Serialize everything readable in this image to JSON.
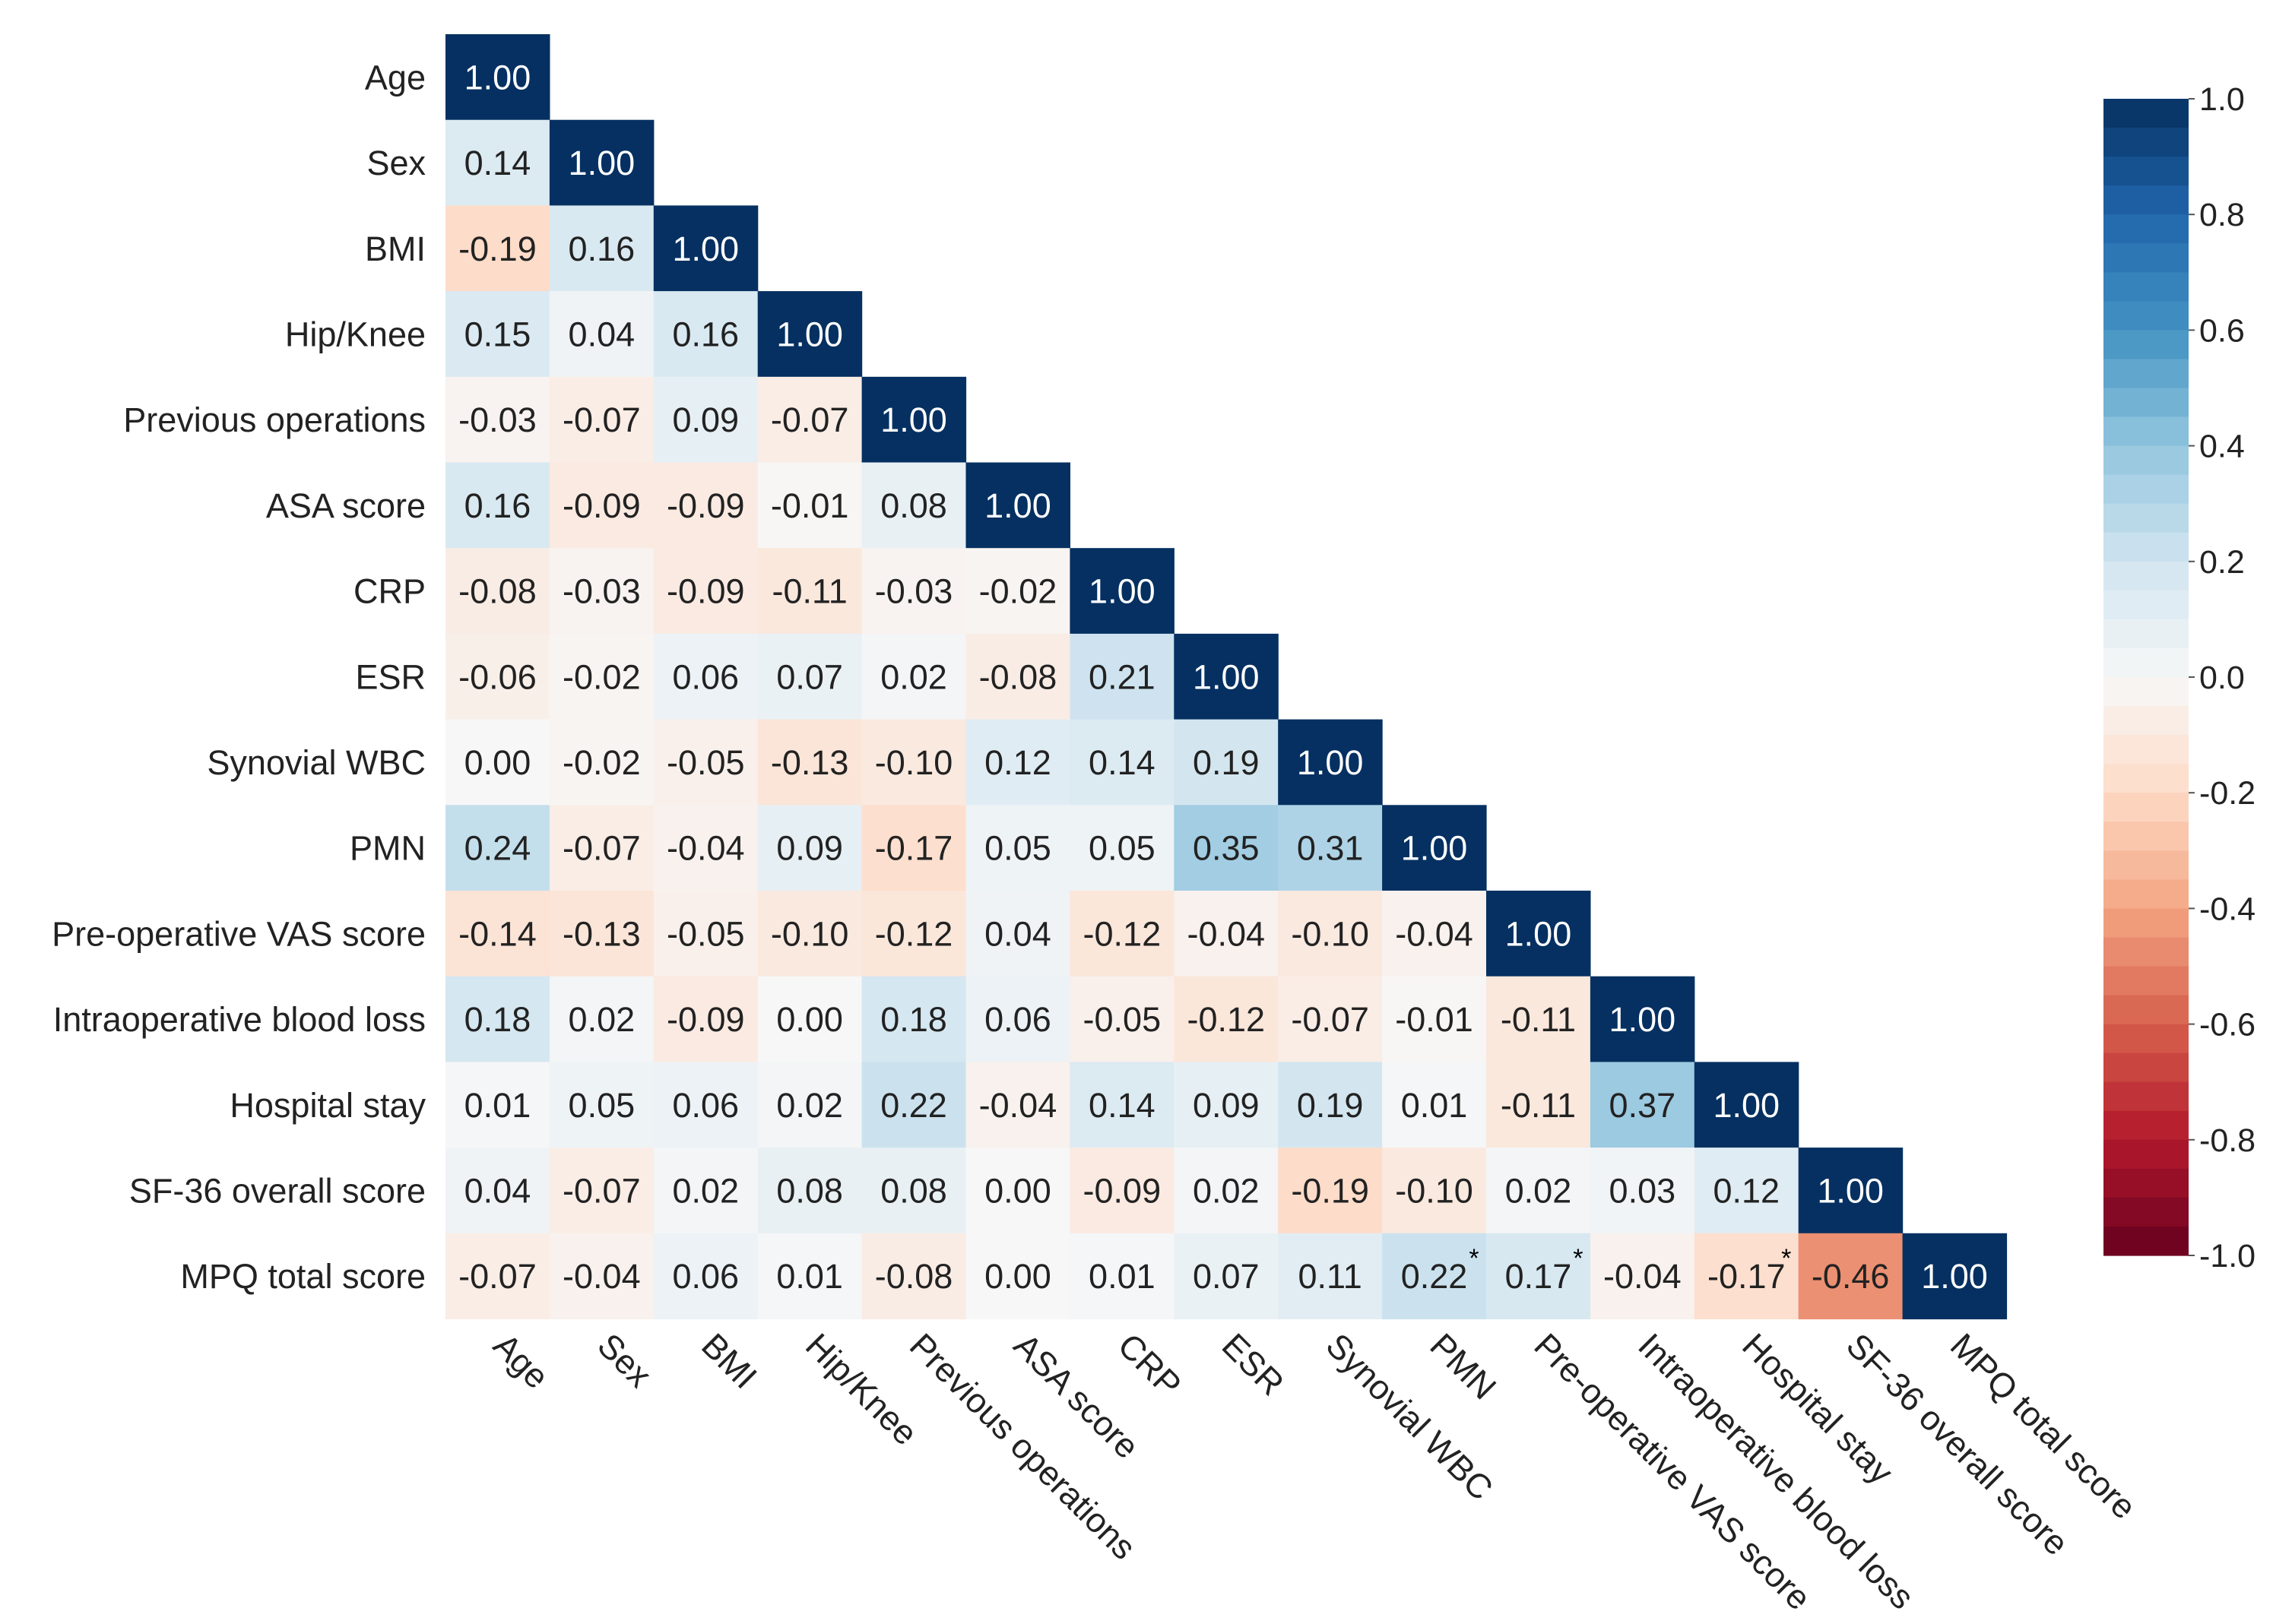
{
  "chart_data": {
    "type": "heatmap",
    "subtype": "lower-triangle correlation matrix",
    "labels": [
      "Age",
      "Sex",
      "BMI",
      "Hip/Knee",
      "Previous operations",
      "ASA score",
      "CRP",
      "ESR",
      "Synovial WBC",
      "PMN",
      "Pre-operative VAS score",
      "Intraoperative blood loss",
      "Hospital stay",
      "SF-36 overall score",
      "MPQ total score"
    ],
    "rows": [
      [
        "1.00"
      ],
      [
        "0.14",
        "1.00"
      ],
      [
        "-0.19",
        "0.16",
        "1.00"
      ],
      [
        "0.15",
        "0.04",
        "0.16",
        "1.00"
      ],
      [
        "-0.03",
        "-0.07",
        "0.09",
        "-0.07",
        "1.00"
      ],
      [
        "0.16",
        "-0.09",
        "-0.09",
        "-0.01",
        "0.08",
        "1.00"
      ],
      [
        "-0.08",
        "-0.03",
        "-0.09",
        "-0.11",
        "-0.03",
        "-0.02",
        "1.00"
      ],
      [
        "-0.06",
        "-0.02",
        "0.06",
        "0.07",
        "0.02",
        "-0.08",
        "0.21",
        "1.00"
      ],
      [
        "0.00",
        "-0.02",
        "-0.05",
        "-0.13",
        "-0.10",
        "0.12",
        "0.14",
        "0.19",
        "1.00"
      ],
      [
        "0.24",
        "-0.07",
        "-0.04",
        "0.09",
        "-0.17",
        "0.05",
        "0.05",
        "0.35",
        "0.31",
        "1.00"
      ],
      [
        "-0.14",
        "-0.13",
        "-0.05",
        "-0.10",
        "-0.12",
        "0.04",
        "-0.12",
        "-0.04",
        "-0.10",
        "-0.04",
        "1.00"
      ],
      [
        "0.18",
        "0.02",
        "-0.09",
        "0.00",
        "0.18",
        "0.06",
        "-0.05",
        "-0.12",
        "-0.07",
        "-0.01",
        "-0.11",
        "1.00"
      ],
      [
        "0.01",
        "0.05",
        "0.06",
        "0.02",
        "0.22",
        "-0.04",
        "0.14",
        "0.09",
        "0.19",
        "0.01",
        "-0.11",
        "0.37",
        "1.00"
      ],
      [
        "0.04",
        "-0.07",
        "0.02",
        "0.08",
        "0.08",
        "0.00",
        "-0.09",
        "0.02",
        "-0.19",
        "-0.10",
        "0.02",
        "0.03",
        "0.12",
        "1.00"
      ],
      [
        "-0.07",
        "-0.04",
        "0.06",
        "0.01",
        "-0.08",
        "0.00",
        "0.01",
        "0.07",
        "0.11",
        "0.22",
        "0.17",
        "-0.04",
        "-0.17",
        "-0.46",
        "1.00"
      ]
    ],
    "significance_markers": [
      {
        "row": 14,
        "col": 9,
        "mark": "*"
      },
      {
        "row": 14,
        "col": 10,
        "mark": "*"
      },
      {
        "row": 14,
        "col": 12,
        "mark": "*"
      }
    ],
    "colorbar": {
      "range": [
        -1.0,
        1.0
      ],
      "ticks": [
        "1.0",
        "0.8",
        "0.6",
        "0.4",
        "0.2",
        "0.0",
        "-0.2",
        "-0.4",
        "-0.6",
        "-0.8",
        "-1.0"
      ],
      "colormap": "RdBu (diverging, red negative, blue positive)",
      "position": "right"
    }
  }
}
